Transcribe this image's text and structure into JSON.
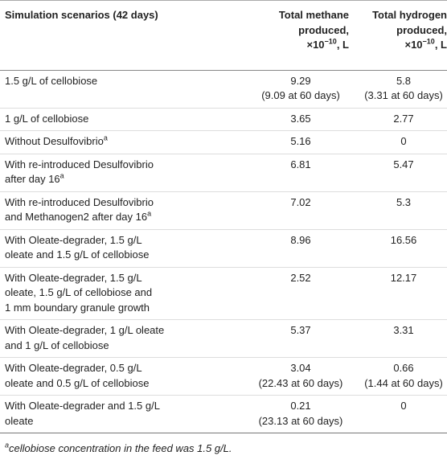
{
  "table": {
    "header": {
      "scenario": "Simulation scenarios (42 days)",
      "methane": {
        "lines": [
          "Total methane",
          "produced,"
        ],
        "base": "×10",
        "exp": "−10",
        "suffix": ", L"
      },
      "hydrogen": {
        "lines": [
          "Total hydrogen",
          "produced,"
        ],
        "base": "×10",
        "exp": "−10",
        "suffix": ", L"
      }
    },
    "rows": [
      {
        "label": [
          "1.5 g/L of cellobiose"
        ],
        "methane": [
          "9.29",
          "(9.09 at 60 days)"
        ],
        "hydrogen": [
          "5.8",
          "(3.31 at 60 days)"
        ]
      },
      {
        "label": [
          "1 g/L of cellobiose"
        ],
        "methane": [
          "3.65"
        ],
        "hydrogen": [
          "2.77"
        ]
      },
      {
        "label": [
          "Without Desulfovibrio"
        ],
        "sup": "a",
        "methane": [
          "5.16"
        ],
        "hydrogen": [
          "0"
        ]
      },
      {
        "label": [
          "With re-introduced Desulfovibrio",
          "after day 16"
        ],
        "sup": "a",
        "methane": [
          "6.81"
        ],
        "hydrogen": [
          "5.47"
        ]
      },
      {
        "label": [
          "With re-introduced Desulfovibrio",
          "and Methanogen2 after day 16"
        ],
        "sup": "a",
        "methane": [
          "7.02"
        ],
        "hydrogen": [
          "5.3"
        ]
      },
      {
        "label": [
          "With Oleate-degrader, 1.5 g/L",
          "oleate and 1.5 g/L of cellobiose"
        ],
        "methane": [
          "8.96"
        ],
        "hydrogen": [
          "16.56"
        ]
      },
      {
        "label": [
          "With Oleate-degrader, 1.5 g/L",
          "oleate, 1.5 g/L of cellobiose and",
          "1 mm boundary granule growth"
        ],
        "methane": [
          "2.52"
        ],
        "hydrogen": [
          "12.17"
        ]
      },
      {
        "label": [
          "With Oleate-degrader, 1 g/L oleate",
          "and 1 g/L of cellobiose"
        ],
        "methane": [
          "5.37"
        ],
        "hydrogen": [
          "3.31"
        ]
      },
      {
        "label": [
          "With Oleate-degrader, 0.5 g/L",
          "oleate and 0.5 g/L of cellobiose"
        ],
        "methane": [
          "3.04",
          "(22.43 at 60 days)"
        ],
        "hydrogen": [
          "0.66",
          "(1.44 at 60 days)"
        ]
      },
      {
        "label": [
          "With Oleate-degrader and 1.5 g/L",
          "oleate"
        ],
        "methane": [
          "0.21",
          "(23.13 at 60 days)"
        ],
        "hydrogen": [
          "0"
        ]
      }
    ],
    "footnote": {
      "sup": "a",
      "text": "cellobiose concentration in the feed was 1.5 g/L."
    }
  }
}
